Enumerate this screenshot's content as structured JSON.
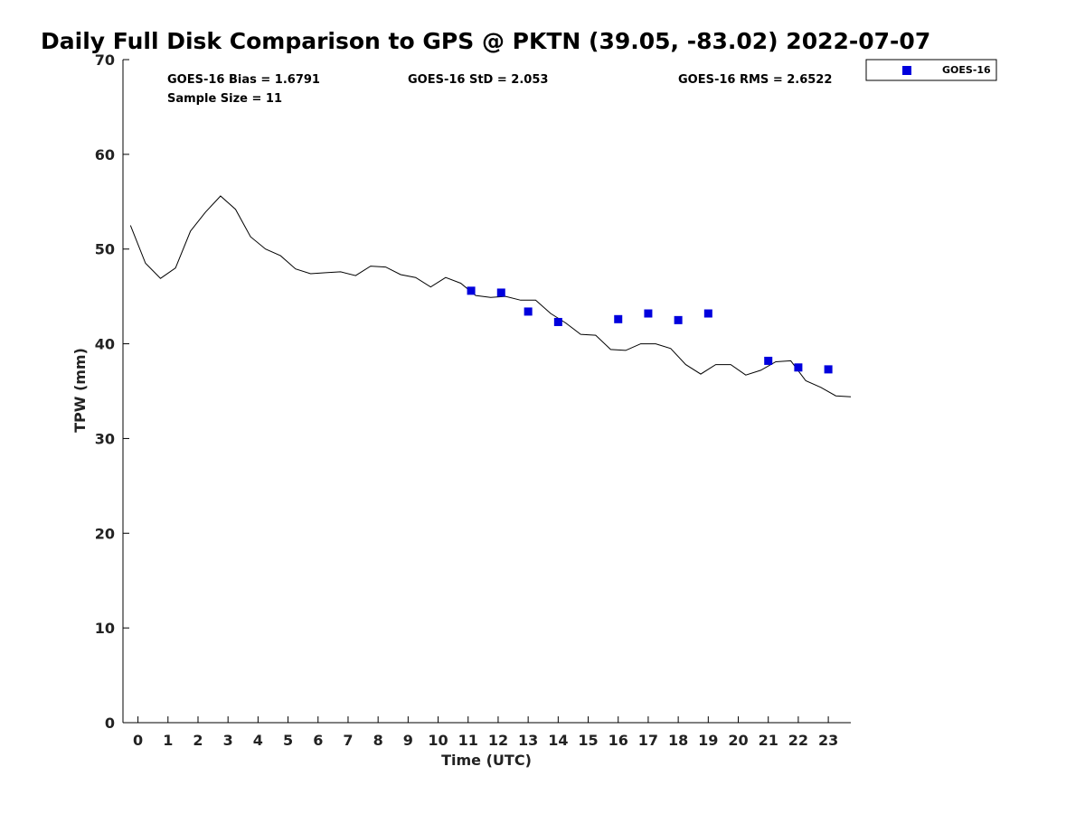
{
  "chart_data": {
    "type": "scatter",
    "title": "Daily Full Disk Comparison to GPS @ PKTN (39.05, -83.02) 2022-07-07",
    "xlabel": "Time (UTC)",
    "ylabel": "TPW (mm)",
    "xlim": [
      -0.5,
      23.75
    ],
    "ylim": [
      0,
      70
    ],
    "xticks": [
      "0",
      "1",
      "2",
      "3",
      "4",
      "5",
      "6",
      "7",
      "8",
      "9",
      "10",
      "11",
      "12",
      "13",
      "14",
      "15",
      "16",
      "17",
      "18",
      "19",
      "20",
      "21",
      "22",
      "23"
    ],
    "yticks": [
      "0",
      "10",
      "20",
      "30",
      "40",
      "50",
      "60",
      "70"
    ],
    "grid": false,
    "legend_position": "top-right",
    "stats": {
      "bias": "GOES-16 Bias = 1.6791",
      "std": "GOES-16 StD = 2.053",
      "rms": "GOES-16 RMS = 2.6522",
      "sample": "Sample Size = 11"
    },
    "series": [
      {
        "type": "line",
        "color": "#000000",
        "x": [
          -0.25,
          0.25,
          0.75,
          1.25,
          1.75,
          2.25,
          2.75,
          3.25,
          3.75,
          4.25,
          4.75,
          5.25,
          5.75,
          6.25,
          6.75,
          7.25,
          7.75,
          8.25,
          8.75,
          9.25,
          9.75,
          10.25,
          10.75,
          11.25,
          11.75,
          12.25,
          12.75,
          13.25,
          13.75,
          14.25,
          14.75,
          15.25,
          15.75,
          16.25,
          16.75,
          17.25,
          17.75,
          18.25,
          18.75,
          19.25,
          19.75,
          20.25,
          20.75,
          21.25,
          21.75,
          22.25,
          22.75,
          23.25,
          23.75
        ],
        "y": [
          52.5,
          48.5,
          46.9,
          48.0,
          51.9,
          53.9,
          55.6,
          54.2,
          51.3,
          50.0,
          49.3,
          47.9,
          47.4,
          47.5,
          47.6,
          47.2,
          48.2,
          48.1,
          47.3,
          47.0,
          46.0,
          47.0,
          46.4,
          45.1,
          44.9,
          45.0,
          44.6,
          44.6,
          43.2,
          42.2,
          41.0,
          40.9,
          39.4,
          39.3,
          40.0,
          40.0,
          39.5,
          37.8,
          36.8,
          37.8,
          37.8,
          36.7,
          37.2,
          38.1,
          38.2,
          36.1,
          35.4,
          34.5,
          34.4
        ]
      },
      {
        "type": "scatter",
        "name": "GOES-16",
        "color": "#0000dd",
        "x": [
          11.1,
          12.1,
          13.0,
          14.0,
          16.0,
          17.0,
          18.0,
          19.0,
          21.0,
          22.0,
          23.0
        ],
        "y": [
          45.6,
          45.4,
          43.4,
          42.3,
          42.6,
          43.2,
          42.5,
          43.2,
          38.2,
          37.5,
          37.3
        ]
      }
    ]
  }
}
